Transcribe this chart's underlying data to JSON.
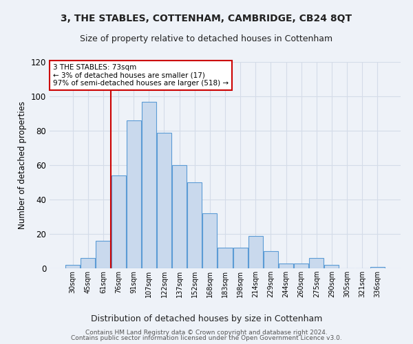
{
  "title1": "3, THE STABLES, COTTENHAM, CAMBRIDGE, CB24 8QT",
  "title2": "Size of property relative to detached houses in Cottenham",
  "xlabel": "Distribution of detached houses by size in Cottenham",
  "ylabel": "Number of detached properties",
  "bar_labels": [
    "30sqm",
    "45sqm",
    "61sqm",
    "76sqm",
    "91sqm",
    "107sqm",
    "122sqm",
    "137sqm",
    "152sqm",
    "168sqm",
    "183sqm",
    "198sqm",
    "214sqm",
    "229sqm",
    "244sqm",
    "260sqm",
    "275sqm",
    "290sqm",
    "305sqm",
    "321sqm",
    "336sqm"
  ],
  "bar_values": [
    2,
    6,
    16,
    54,
    86,
    97,
    79,
    60,
    50,
    32,
    12,
    12,
    19,
    10,
    3,
    3,
    6,
    2,
    0,
    0,
    1
  ],
  "bar_color": "#c9d9ed",
  "bar_edge_color": "#5b9bd5",
  "grid_color": "#d4dce8",
  "vline_color": "#cc0000",
  "annotation_text": "3 THE STABLES: 73sqm\n← 3% of detached houses are smaller (17)\n97% of semi-detached houses are larger (518) →",
  "annotation_box_color": "#ffffff",
  "annotation_box_edge": "#cc0000",
  "ylim": [
    0,
    120
  ],
  "yticks": [
    0,
    20,
    40,
    60,
    80,
    100,
    120
  ],
  "footer1": "Contains HM Land Registry data © Crown copyright and database right 2024.",
  "footer2": "Contains public sector information licensed under the Open Government Licence v3.0.",
  "bg_color": "#eef2f8"
}
